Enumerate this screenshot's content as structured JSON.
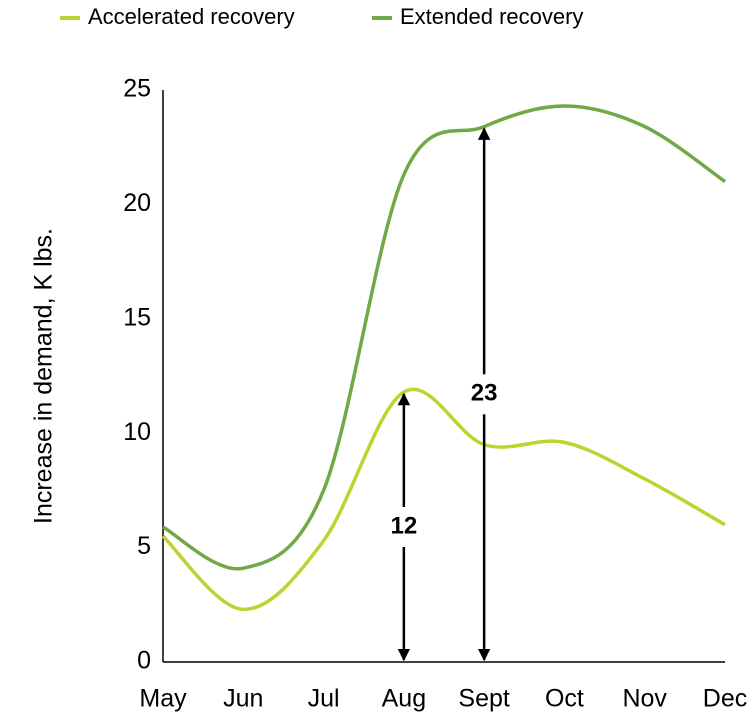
{
  "chart_data": {
    "type": "line",
    "ylabel": "Increase in demand, K lbs.",
    "categories": [
      "May",
      "Jun",
      "Jul",
      "Aug",
      "Sept",
      "Oct",
      "Nov",
      "Dec"
    ],
    "series": [
      {
        "name": "Accelerated recovery",
        "color": "#bfd230",
        "values": [
          5.5,
          2.3,
          5.3,
          11.8,
          9.5,
          9.6,
          8.0,
          6.0
        ]
      },
      {
        "name": "Extended recovery",
        "color": "#72a846",
        "values": [
          5.9,
          4.1,
          7.5,
          21.3,
          23.4,
          24.3,
          23.4,
          21.0
        ]
      }
    ],
    "ylim": [
      0,
      25
    ],
    "yticks": [
      0,
      5,
      10,
      15,
      20,
      25
    ],
    "legend": "top",
    "annotations": [
      {
        "label": "12",
        "x": "Aug",
        "value": 11.8
      },
      {
        "label": "23",
        "x": "Sept",
        "value": 23.4
      }
    ]
  }
}
